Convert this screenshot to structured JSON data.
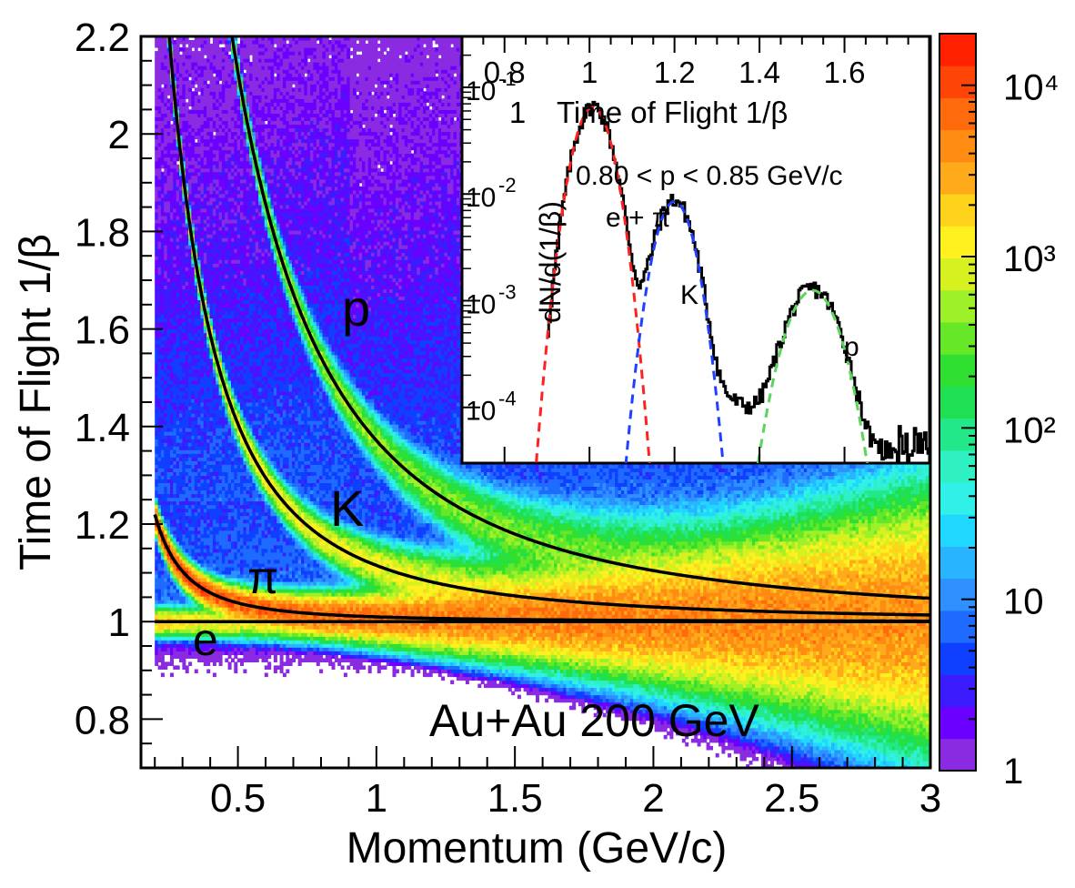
{
  "chart_data": {
    "type": "heatmap",
    "title": "",
    "xlabel": "Momentum (GeV/c)",
    "ylabel": "Time of Flight 1/β",
    "xlim": [
      0.15,
      3.0
    ],
    "ylim": [
      0.7,
      2.2
    ],
    "x_ticks": [
      0.5,
      1,
      1.5,
      2,
      2.5,
      3
    ],
    "x_tick_labels": [
      "0.5",
      "1",
      "1.5",
      "2",
      "2.5",
      "3"
    ],
    "y_ticks": [
      0.8,
      1,
      1.2,
      1.4,
      1.6,
      1.8,
      2,
      2.2
    ],
    "y_tick_labels": [
      "0.8",
      "1",
      "1.2",
      "1.4",
      "1.6",
      "1.8",
      "2",
      "2.2"
    ],
    "color_scale": {
      "log": true,
      "range": [
        1,
        20000
      ],
      "ticks": [
        {
          "value": 1,
          "label": "1"
        },
        {
          "value": 10,
          "label": "10"
        },
        {
          "value": 100,
          "label": "10²"
        },
        {
          "value": 1000,
          "label": "10³"
        },
        {
          "value": 10000,
          "label": "10⁴"
        }
      ],
      "colors": [
        "#8a2be2",
        "#6a00ff",
        "#3c1cff",
        "#1040ff",
        "#1f6bff",
        "#2f90ff",
        "#28b4ff",
        "#20d8ff",
        "#30f0e8",
        "#2ef0c0",
        "#23e889",
        "#1fe052",
        "#30e030",
        "#66e828",
        "#9ef028",
        "#d6f020",
        "#fff020",
        "#ffd21c",
        "#ffaa1a",
        "#ff8c12",
        "#ff6a0c",
        "#ff4408",
        "#ff2000"
      ]
    },
    "curves": [
      {
        "label": "e",
        "mass": 0.000511
      },
      {
        "label": "π",
        "mass": 0.1396
      },
      {
        "label": "K",
        "mass": 0.4937
      },
      {
        "label": "p",
        "mass": 0.9383
      }
    ],
    "annotation": "Au+Au 200 GeV",
    "inset": {
      "type": "line",
      "xlabel": "Time of Flight 1/β",
      "ylabel": "dN/d(1/β)",
      "xlim": [
        0.7,
        1.8
      ],
      "y_log": true,
      "ylim": [
        3e-05,
        0.3
      ],
      "x_ticks": [
        0.8,
        1,
        1.2,
        1.4,
        1.6
      ],
      "x_tick_labels": [
        "0.8",
        "1",
        "1.2",
        "1.4",
        "1.6"
      ],
      "x_extra_tick_label": "1",
      "y_ticks": [
        0.0001,
        0.001,
        0.01,
        0.1
      ],
      "y_tick_labels": [
        {
          "base": "10",
          "exp": "-4"
        },
        {
          "base": "10",
          "exp": "-3"
        },
        {
          "base": "10",
          "exp": "-2"
        },
        {
          "base": "10",
          "exp": "-1"
        }
      ],
      "range_text": "0.80 < p < 0.85 GeV/c",
      "labels": [
        {
          "text": "e + π",
          "color": "#ff0000"
        },
        {
          "text": "K",
          "color": "#0000cc"
        },
        {
          "text": "p",
          "color": "#5ad45a"
        }
      ],
      "peaks": [
        {
          "name": "e + π",
          "mean": 1.008,
          "sigma": 0.034,
          "amplitude": 0.065,
          "color": "#ff2020"
        },
        {
          "name": "K",
          "mean": 1.2,
          "sigma": 0.034,
          "amplitude": 0.0085,
          "color": "#2040ff"
        },
        {
          "name": "p",
          "mean": 1.525,
          "sigma": 0.047,
          "amplitude": 0.00125,
          "color": "#5ad45a"
        }
      ]
    }
  }
}
